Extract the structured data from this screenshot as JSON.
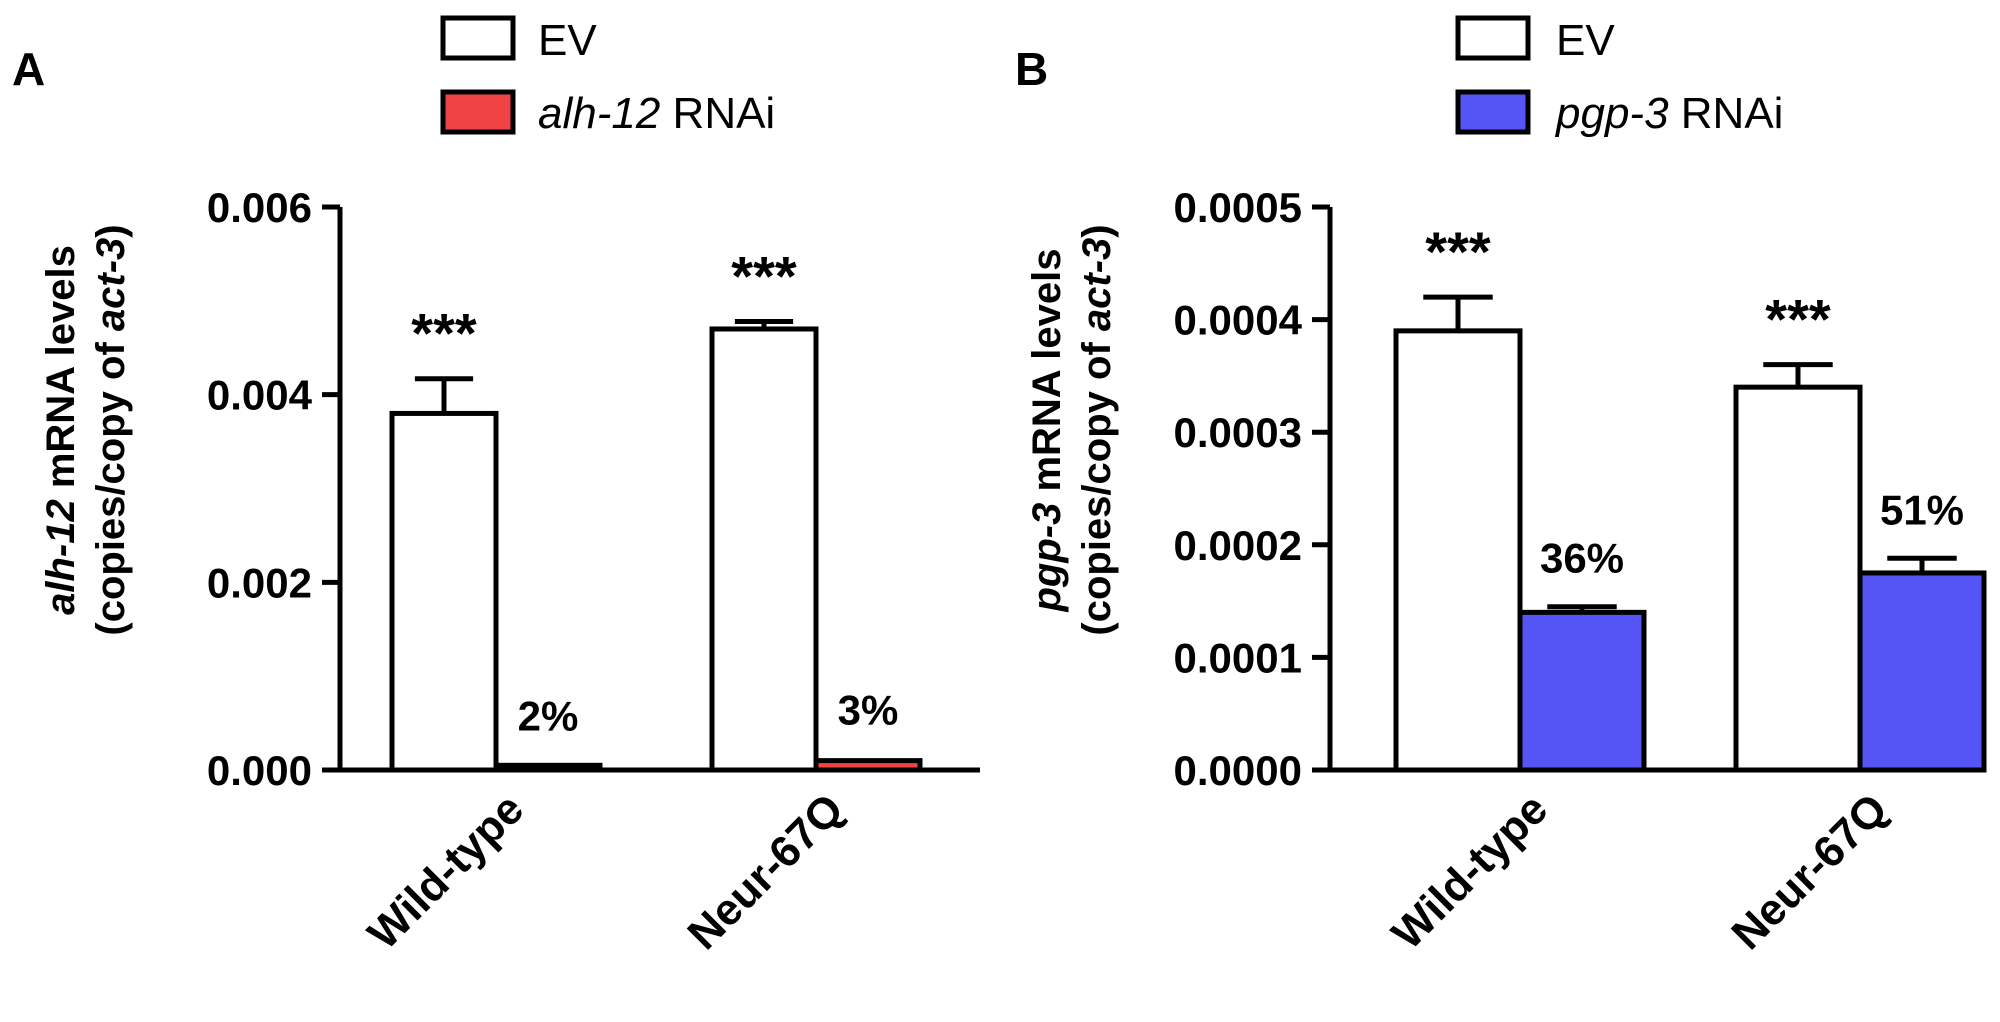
{
  "chart_data": [
    {
      "type": "bar",
      "panel_label": "A",
      "categories": [
        "Wild-type",
        "Neur-67Q"
      ],
      "series": [
        {
          "name": "EV",
          "label_italic": "",
          "label_rest": "EV",
          "color": "#ffffff",
          "values": [
            0.0038,
            0.0047
          ],
          "errors": [
            0.00037,
            8e-05
          ]
        },
        {
          "name": "alh-12 RNAi",
          "label_italic": "alh-12",
          "label_rest": " RNAi",
          "color": "#f04444",
          "values": [
            5e-05,
            0.0001
          ],
          "errors": [
            1e-05,
            2e-05
          ]
        }
      ],
      "bar_annotations": [
        {
          "category": 0,
          "series": 0,
          "text": "***"
        },
        {
          "category": 1,
          "series": 0,
          "text": "***"
        },
        {
          "category": 0,
          "series": 1,
          "text": "2%"
        },
        {
          "category": 1,
          "series": 1,
          "text": "3%"
        }
      ],
      "ylim": [
        0,
        0.006
      ],
      "yticks": [
        0,
        0.002,
        0.004,
        0.006
      ],
      "ytick_labels": [
        "0.000",
        "0.002",
        "0.004",
        "0.006"
      ],
      "ylabel": {
        "line1_italic": "alh-12",
        "line1_rest": " mRNA levels",
        "line2_pre": "(copies/copy of ",
        "line2_italic": "act-3",
        "line2_post": ")"
      },
      "xlabel": "",
      "legend_position": "top"
    },
    {
      "type": "bar",
      "panel_label": "B",
      "categories": [
        "Wild-type",
        "Neur-67Q"
      ],
      "series": [
        {
          "name": "EV",
          "label_italic": "",
          "label_rest": "EV",
          "color": "#ffffff",
          "values": [
            0.00039,
            0.00034
          ],
          "errors": [
            3e-05,
            2e-05
          ]
        },
        {
          "name": "pgp-3 RNAi",
          "label_italic": "pgp-3",
          "label_rest": " RNAi",
          "color": "#5555f5",
          "values": [
            0.00014,
            0.000175
          ],
          "errors": [
            5e-06,
            1.3e-05
          ]
        }
      ],
      "bar_annotations": [
        {
          "category": 0,
          "series": 0,
          "text": "***"
        },
        {
          "category": 1,
          "series": 0,
          "text": "***"
        },
        {
          "category": 0,
          "series": 1,
          "text": "36%"
        },
        {
          "category": 1,
          "series": 1,
          "text": "51%"
        }
      ],
      "ylim": [
        0,
        0.0005
      ],
      "yticks": [
        0,
        0.0001,
        0.0002,
        0.0003,
        0.0004,
        0.0005
      ],
      "ytick_labels": [
        "0.0000",
        "0.0001",
        "0.0002",
        "0.0003",
        "0.0004",
        "0.0005"
      ],
      "ylabel": {
        "line1_italic": "pgp-3",
        "line1_rest": " mRNA levels",
        "line2_pre": "(copies/copy of ",
        "line2_italic": "act-3",
        "line2_post": ")"
      },
      "xlabel": "",
      "legend_position": "top"
    }
  ]
}
